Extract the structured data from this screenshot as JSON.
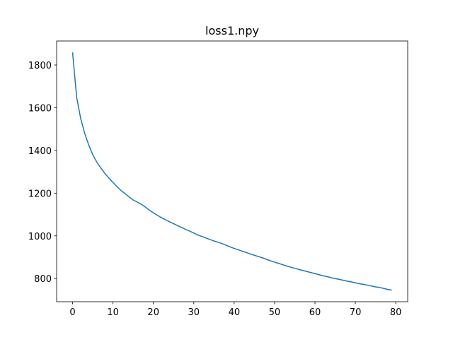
{
  "chart_data": {
    "type": "line",
    "title": "loss1.npy",
    "x": [
      0,
      1,
      2,
      3,
      4,
      5,
      6,
      7,
      8,
      9,
      10,
      11,
      12,
      13,
      14,
      15,
      16,
      17,
      18,
      19,
      20,
      21,
      22,
      23,
      24,
      25,
      26,
      27,
      28,
      29,
      30,
      31,
      32,
      33,
      34,
      35,
      36,
      37,
      38,
      39,
      40,
      41,
      42,
      43,
      44,
      45,
      46,
      47,
      48,
      49,
      50,
      51,
      52,
      53,
      54,
      55,
      56,
      57,
      58,
      59,
      60,
      61,
      62,
      63,
      64,
      65,
      66,
      67,
      68,
      69,
      70,
      71,
      72,
      73,
      74,
      75,
      76,
      77,
      78,
      79
    ],
    "series": [
      {
        "color": "#1f77b4",
        "values": [
          1859,
          1650,
          1550,
          1480,
          1425,
          1380,
          1345,
          1318,
          1292,
          1270,
          1250,
          1230,
          1212,
          1198,
          1182,
          1168,
          1158,
          1148,
          1135,
          1120,
          1108,
          1096,
          1085,
          1075,
          1066,
          1057,
          1048,
          1039,
          1030,
          1022,
          1013,
          1004,
          997,
          990,
          983,
          976,
          970,
          964,
          956,
          948,
          941,
          935,
          928,
          922,
          915,
          909,
          903,
          897,
          890,
          883,
          877,
          871,
          865,
          859,
          853,
          848,
          843,
          838,
          833,
          828,
          823,
          818,
          813,
          809,
          804,
          800,
          796,
          792,
          788,
          784,
          780,
          776,
          773,
          769,
          765,
          761,
          758,
          754,
          749,
          746
        ]
      }
    ],
    "xlim": [
      -3.95,
      82.95
    ],
    "xticks": [
      0,
      10,
      20,
      30,
      40,
      50,
      60,
      70,
      80
    ],
    "ylim": [
      691.5,
      1912.5
    ],
    "yticks": [
      800,
      1000,
      1200,
      1400,
      1600,
      1800
    ],
    "grid": false
  }
}
